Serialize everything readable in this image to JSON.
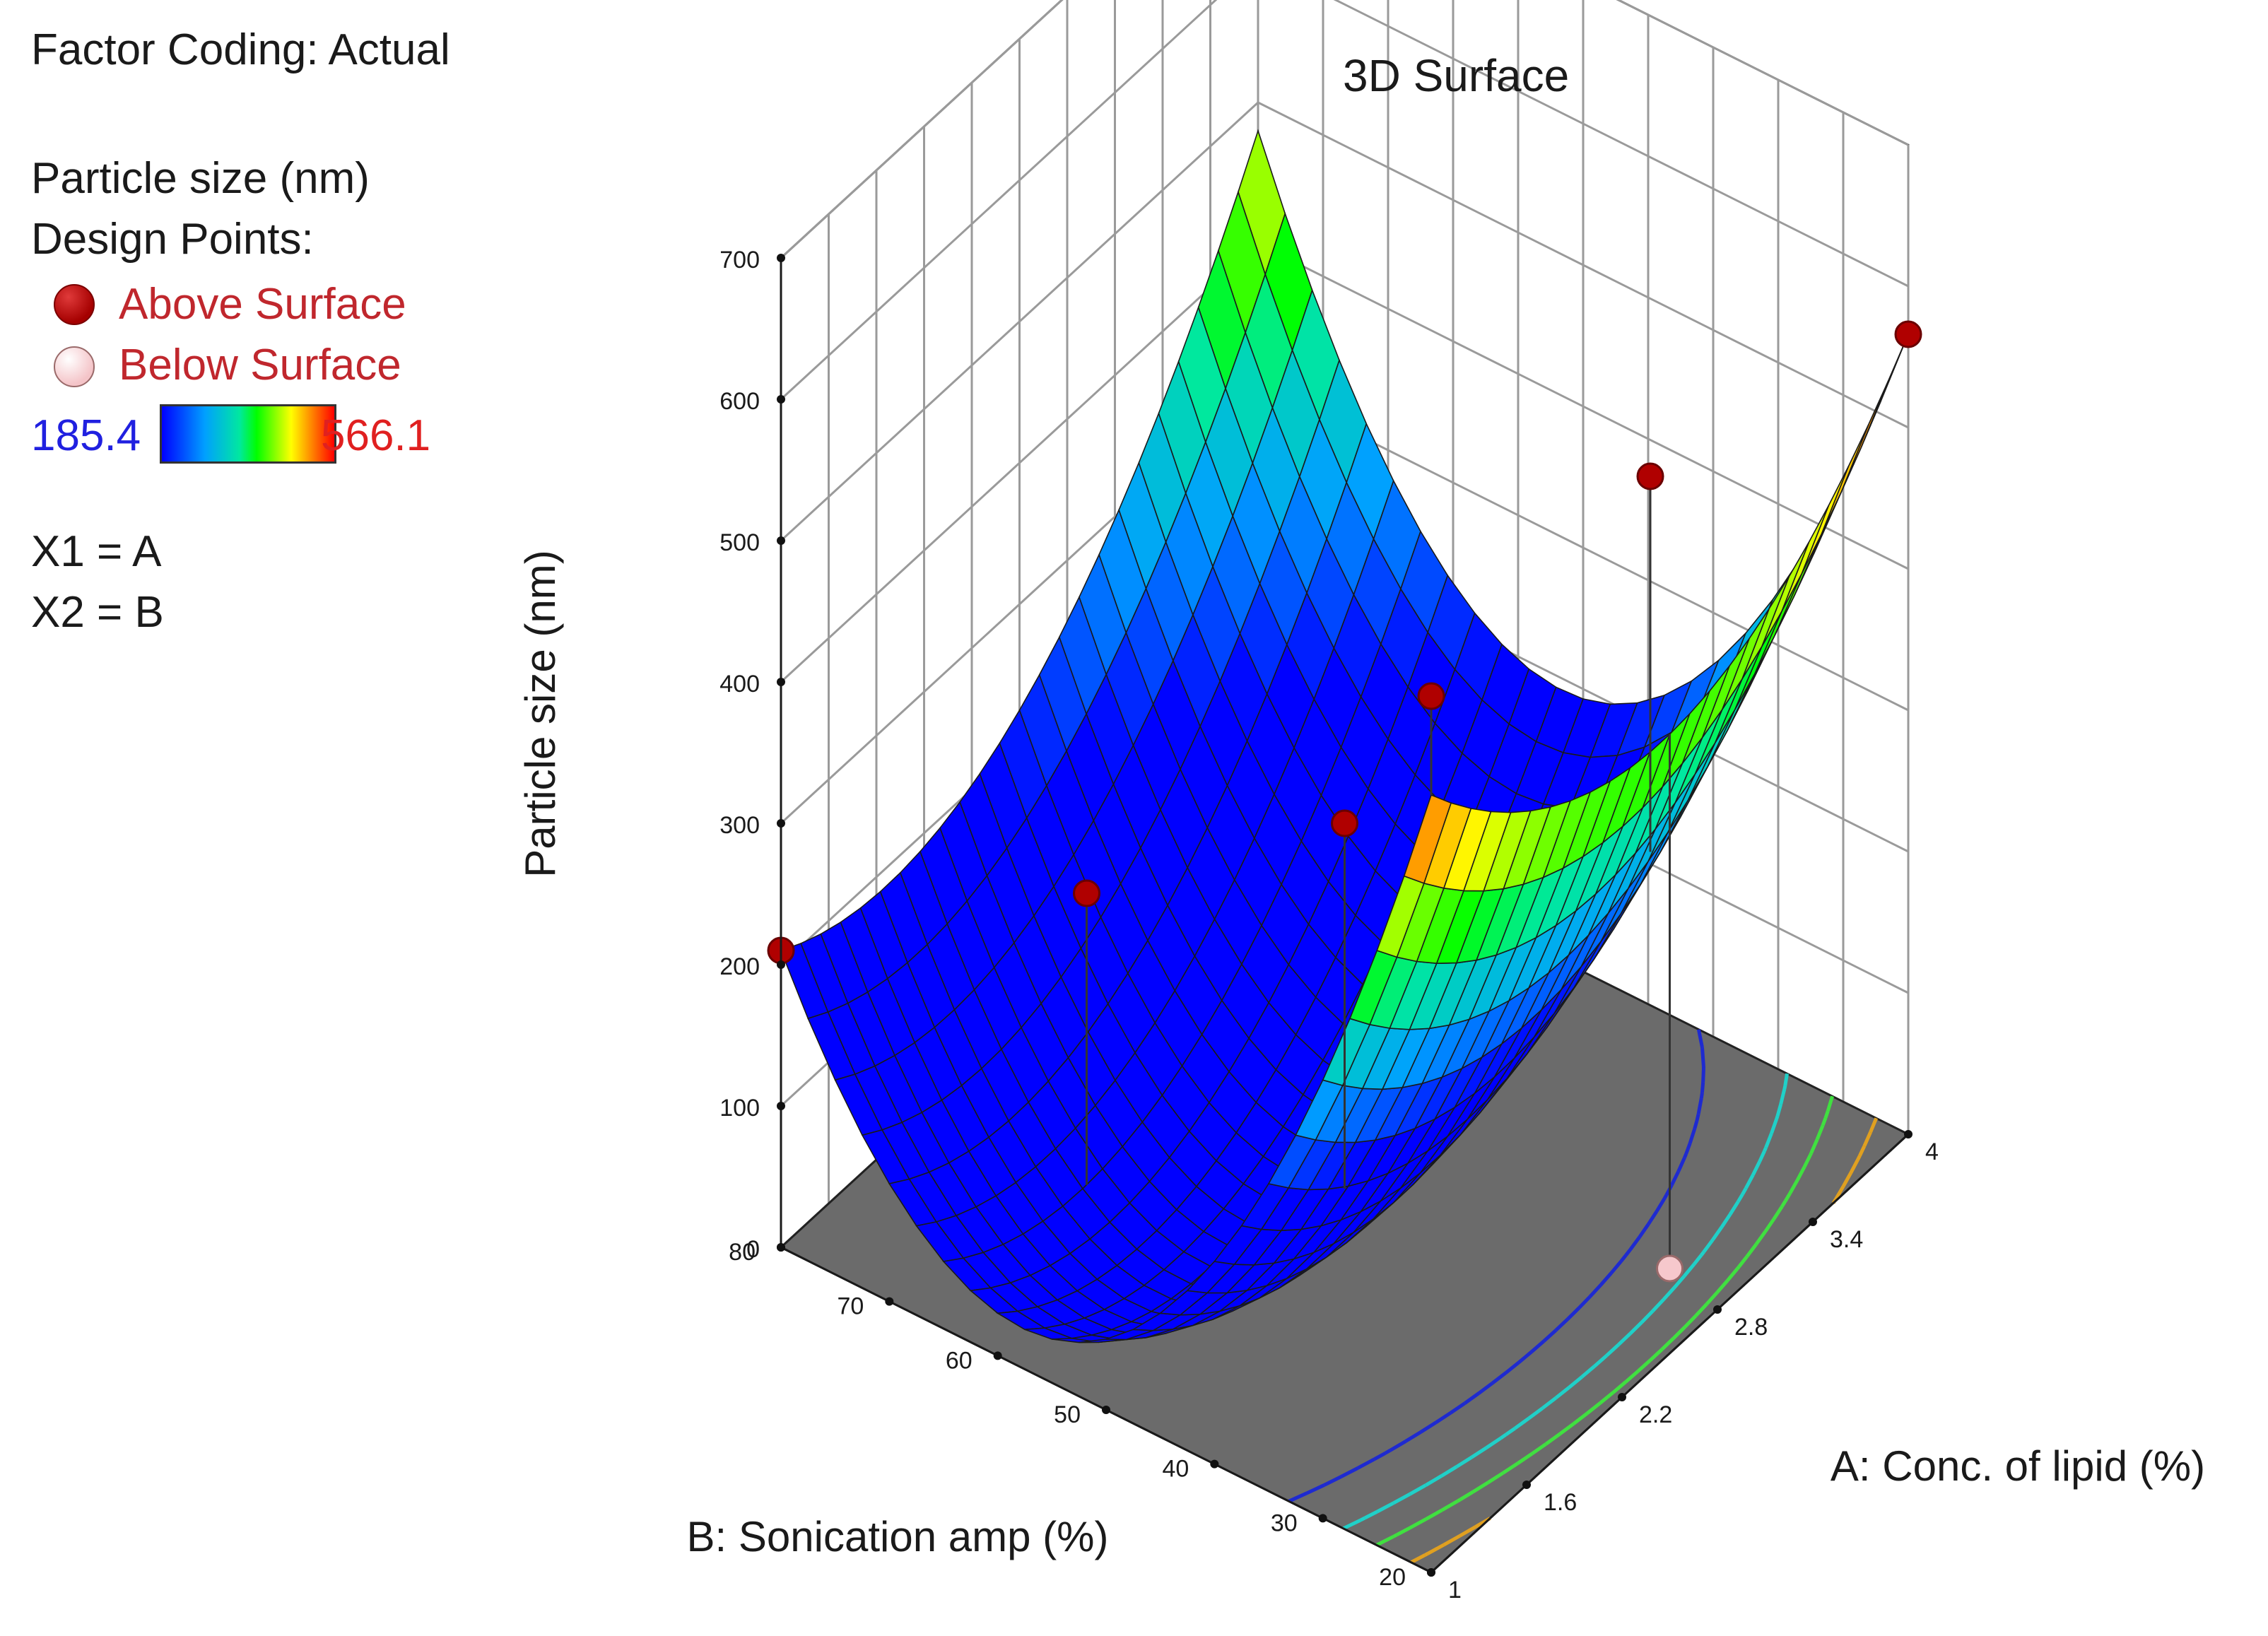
{
  "legend": {
    "factor_coding": "Factor Coding: Actual",
    "response": "Particle size (nm)",
    "design_points_label": "Design Points:",
    "above_label": "Above Surface",
    "below_label": "Below Surface",
    "color_min": "185.4",
    "color_max": "566.1",
    "x1": "X1 = A",
    "x2": "X2 = B"
  },
  "chart_data": {
    "type": "surface3d",
    "title": "3D Surface",
    "xlabel": "A: Conc. of lipid (%)",
    "ylabel": "B: Sonication amp (%)",
    "zlabel": "Particle size (nm)",
    "x_ticks": [
      "1",
      "1.6",
      "2.2",
      "2.8",
      "3.4",
      "4"
    ],
    "y_ticks": [
      "20",
      "30",
      "40",
      "50",
      "60",
      "70",
      "80"
    ],
    "z_ticks": [
      "0",
      "100",
      "200",
      "300",
      "400",
      "500",
      "600",
      "700"
    ],
    "xlim": [
      1,
      4
    ],
    "ylim": [
      20,
      80
    ],
    "zlim": [
      0,
      700
    ],
    "color_range": [
      185.4,
      566.1
    ],
    "colors": {
      "low": "#0000ff",
      "high": "#ff0000",
      "floor": "#6b6b6b",
      "above_point": "#b00000",
      "below_point": "#f6c8cc"
    },
    "surface_corners": [
      {
        "a": 1,
        "b": 80,
        "z": 210
      },
      {
        "a": 1,
        "b": 20,
        "z": 550
      },
      {
        "a": 4,
        "b": 20,
        "z": 566
      },
      {
        "a": 4,
        "b": 80,
        "z": 480
      }
    ],
    "design_points": [
      {
        "a": 1,
        "b": 80,
        "z": 210,
        "position": "Above Surface"
      },
      {
        "a": 1,
        "b": 20,
        "z": 620,
        "position": "Above Surface"
      },
      {
        "a": 4,
        "b": 20,
        "z": 566,
        "position": "Above Surface"
      },
      {
        "a": 2.5,
        "b": 50,
        "z": 260,
        "position": "Above Surface"
      },
      {
        "a": 3.4,
        "b": 35,
        "z": 470,
        "position": "Above Surface"
      },
      {
        "a": 1.9,
        "b": 65,
        "z": 215,
        "position": "Above Surface"
      },
      {
        "a": 2.5,
        "b": 20,
        "z": 60,
        "position": "Below Surface"
      }
    ]
  }
}
